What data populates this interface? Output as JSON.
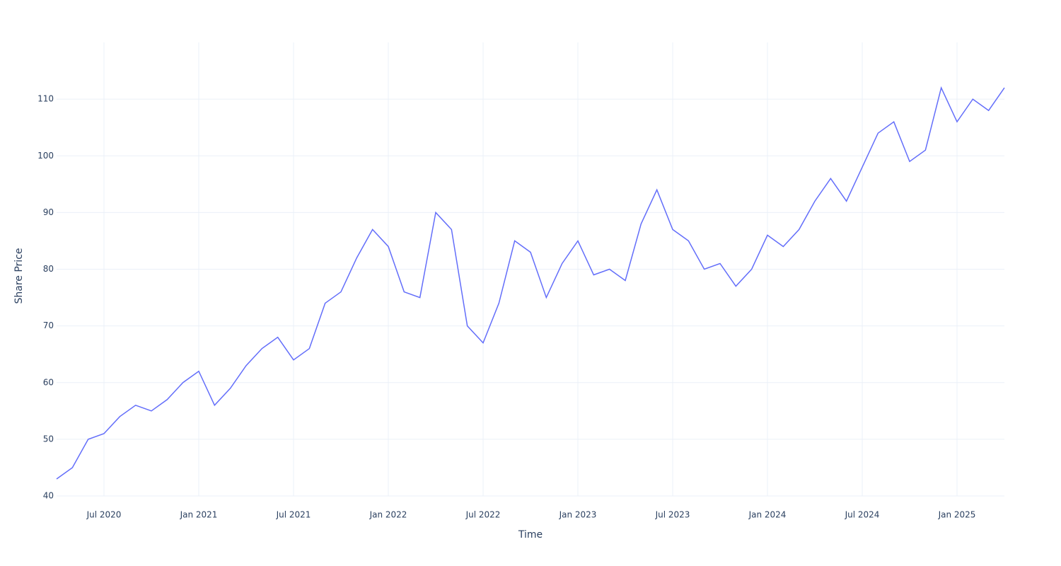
{
  "chart_data": {
    "type": "line",
    "x_label": "Time",
    "y_label": "Share Price",
    "x": [
      "2020-04",
      "2020-05",
      "2020-06",
      "2020-07",
      "2020-08",
      "2020-09",
      "2020-10",
      "2020-11",
      "2020-12",
      "2021-01",
      "2021-02",
      "2021-03",
      "2021-04",
      "2021-05",
      "2021-06",
      "2021-07",
      "2021-08",
      "2021-09",
      "2021-10",
      "2021-11",
      "2021-12",
      "2022-01",
      "2022-02",
      "2022-03",
      "2022-04",
      "2022-05",
      "2022-06",
      "2022-07",
      "2022-08",
      "2022-09",
      "2022-10",
      "2022-11",
      "2022-12",
      "2023-01",
      "2023-02",
      "2023-03",
      "2023-04",
      "2023-05",
      "2023-06",
      "2023-07",
      "2023-08",
      "2023-09",
      "2023-10",
      "2023-11",
      "2023-12",
      "2024-01",
      "2024-02",
      "2024-03",
      "2024-04",
      "2024-05",
      "2024-06",
      "2024-07",
      "2024-08",
      "2024-09",
      "2024-10",
      "2024-11",
      "2024-12",
      "2025-01",
      "2025-02",
      "2025-03",
      "2025-04"
    ],
    "series": [
      {
        "name": "Share Price",
        "color": "#636efa",
        "values": [
          43,
          45,
          50,
          51,
          54,
          56,
          55,
          57,
          60,
          62,
          56,
          59,
          63,
          66,
          68,
          64,
          66,
          74,
          76,
          82,
          87,
          84,
          76,
          75,
          90,
          87,
          70,
          67,
          74,
          85,
          83,
          75,
          81,
          85,
          79,
          80,
          78,
          88,
          94,
          87,
          85,
          80,
          81,
          77,
          80,
          86,
          84,
          87,
          92,
          96,
          92,
          98,
          104,
          106,
          99,
          101,
          112,
          106,
          110,
          108,
          112
        ]
      }
    ],
    "xlim": [
      "2020-04",
      "2025-04"
    ],
    "xticks": [
      {
        "value": "2020-07",
        "label": "Jul 2020"
      },
      {
        "value": "2021-01",
        "label": "Jan 2021"
      },
      {
        "value": "2021-07",
        "label": "Jul 2021"
      },
      {
        "value": "2022-01",
        "label": "Jan 2022"
      },
      {
        "value": "2022-07",
        "label": "Jul 2022"
      },
      {
        "value": "2023-01",
        "label": "Jan 2023"
      },
      {
        "value": "2023-07",
        "label": "Jul 2023"
      },
      {
        "value": "2024-01",
        "label": "Jan 2024"
      },
      {
        "value": "2024-07",
        "label": "Jul 2024"
      },
      {
        "value": "2025-01",
        "label": "Jan 2025"
      }
    ],
    "ylim": [
      40,
      120
    ],
    "yticks": [
      40,
      50,
      60,
      70,
      80,
      90,
      100,
      110
    ],
    "grid": true
  }
}
